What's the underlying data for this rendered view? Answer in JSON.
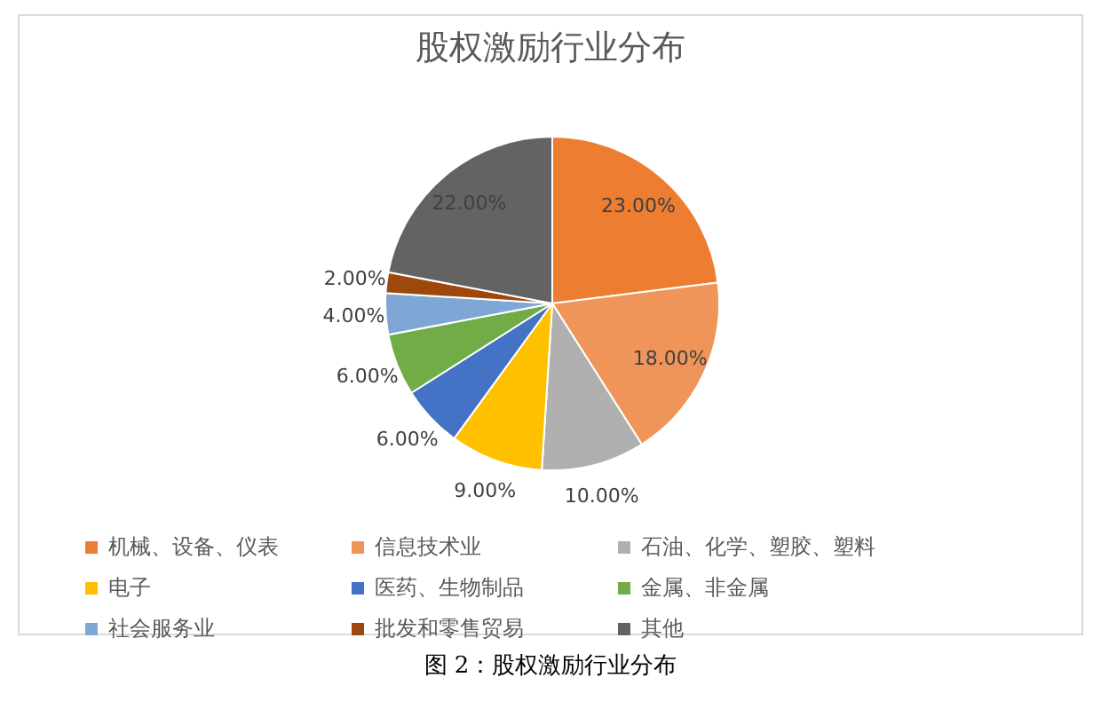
{
  "chart_data": {
    "type": "pie",
    "title": "股权激励行业分布",
    "categories": [
      "机械、设备、仪表",
      "信息技术业",
      "石油、化学、塑胶、塑料",
      "电子",
      "医药、生物制品",
      "金属、非金属",
      "社会服务业",
      "批发和零售贸易",
      "其他"
    ],
    "values": [
      23,
      18,
      10,
      9,
      6,
      6,
      4,
      2,
      22
    ],
    "value_labels": [
      "23.00%",
      "18.00%",
      "10.00%",
      "9.00%",
      "6.00%",
      "6.00%",
      "4.00%",
      "2.00%",
      "22.00%"
    ],
    "colors": [
      "#ed7d31",
      "#f0955a",
      "#b0b0b0",
      "#ffc000",
      "#4472c4",
      "#70ad47",
      "#7fa7d6",
      "#9e480e",
      "#636363"
    ],
    "legend": "bottom",
    "annotations": [
      "图 2：股权激励行业分布"
    ]
  }
}
